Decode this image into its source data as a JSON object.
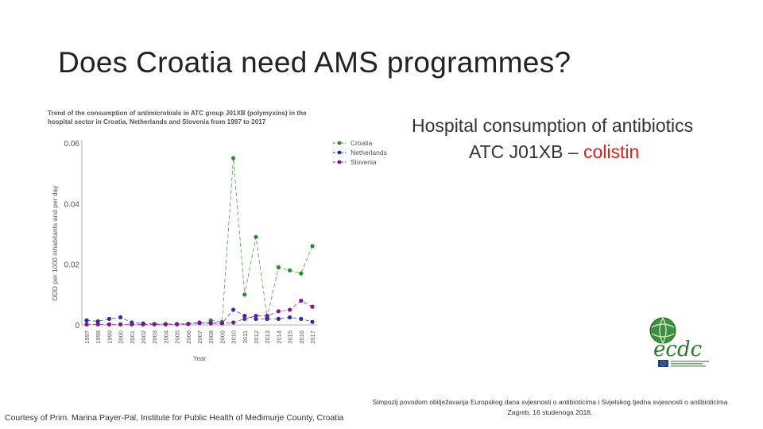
{
  "slide": {
    "title": "Does Croatia need AMS programmes?",
    "heading_line1": "Hospital consumption of antibiotics",
    "heading_line2_prefix": "ATC J01XB – ",
    "heading_line2_accent": "colistin",
    "credit": "Courtesy of Prim. Marina Payer-Pal, Institute for Public Health of Međimurje County, Croatia",
    "symposium_line1": "Simpozij povodom obilježavanja Europskog dana svjesnosti o antibioticima i Svjetskog tjedna svjesnosti o antibioticima",
    "symposium_line2": "Zagreb, 16 studenoga 2018."
  },
  "logo": {
    "text": "ecdc",
    "icon": "ecdc-globe-logo"
  },
  "chart_data": {
    "type": "line",
    "title": "Trend of the consumption of antimicrobials in ATC group J01XB (polymyxins) in the hospital sector in Croatia, Netherlands and Slovenia from 1997 to 2017",
    "xlabel": "Year",
    "ylabel": "DDD per 1000 inhabitants and per day",
    "ylim": [
      0,
      0.06
    ],
    "yticks": [
      "0",
      "0.02",
      "0.04",
      "0.06"
    ],
    "grid": false,
    "legend": "top-right",
    "x": [
      "1997",
      "1998",
      "1999",
      "2000",
      "2001",
      "2002",
      "2003",
      "2004",
      "2005",
      "2006",
      "2007",
      "2008",
      "2009",
      "2010",
      "2011",
      "2012",
      "2013",
      "2014",
      "2015",
      "2016",
      "2017"
    ],
    "series": [
      {
        "name": "Croatia",
        "color": "#2e8b2e",
        "values": [
          null,
          null,
          null,
          null,
          null,
          null,
          null,
          null,
          null,
          null,
          null,
          0.0015,
          0.001,
          0.055,
          0.01,
          0.029,
          0.0025,
          0.019,
          0.018,
          0.017,
          0.026
        ]
      },
      {
        "name": "Netherlands",
        "color": "#2a2aa8",
        "values": [
          0.0015,
          0.0012,
          0.002,
          0.0025,
          0.0008,
          0.0005,
          0.0003,
          0.0003,
          0.0003,
          0.0004,
          0.0008,
          0.0005,
          0.0005,
          0.005,
          0.003,
          0.002,
          0.002,
          0.002,
          0.0025,
          0.002,
          0.001
        ]
      },
      {
        "name": "Slovenia",
        "color": "#7a1a8a",
        "values": [
          0.0002,
          0.0002,
          0.0002,
          0.0002,
          0.0002,
          0.0002,
          0.0002,
          0.0002,
          0.0002,
          0.0003,
          0.0006,
          0.0008,
          0.0006,
          0.0008,
          0.002,
          0.003,
          0.003,
          0.0045,
          0.005,
          0.008,
          0.006
        ]
      }
    ]
  }
}
